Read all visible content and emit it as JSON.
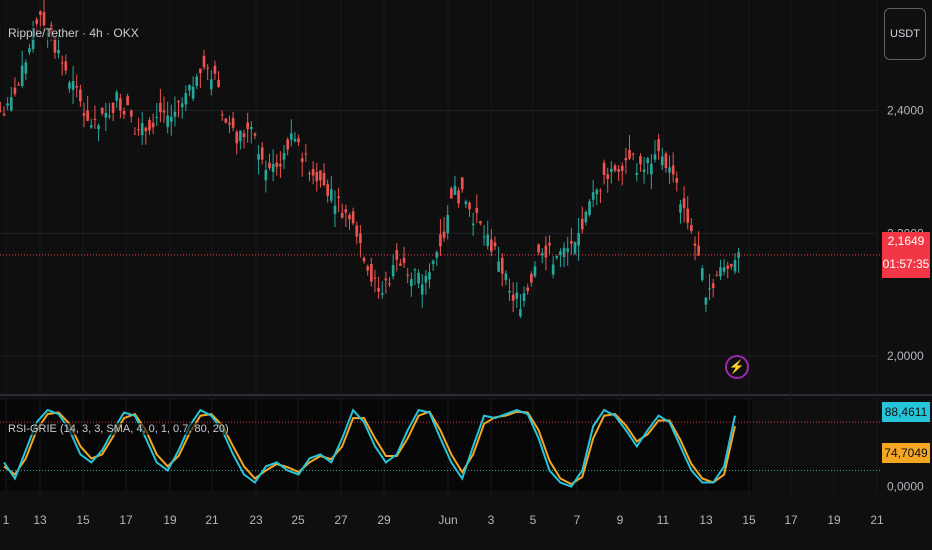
{
  "header": {
    "symbol_title": "Ripple/Tether · 4h · OKX"
  },
  "controls": {
    "currency_label": "USDT"
  },
  "price_axis": {
    "ticks": [
      "2,4000",
      "2,2000",
      "2,0000"
    ]
  },
  "price_tag": {
    "price": "2,1649",
    "countdown": "01:57:35"
  },
  "indicator": {
    "label": "RSI-GRIE (14, 3, 3, SMA, 4, 0, 1, 0.7, 80, 20)",
    "axis_ticks": [
      "0,0000"
    ],
    "k_value": "88,4611",
    "d_value": "74,7049"
  },
  "time_axis": {
    "labels": [
      "1",
      "13",
      "15",
      "17",
      "19",
      "21",
      "23",
      "25",
      "27",
      "29",
      "Jun",
      "3",
      "5",
      "7",
      "9",
      "11",
      "13",
      "15",
      "17",
      "19",
      "21"
    ]
  },
  "icons": {
    "lightning": "lightning-icon"
  },
  "colors": {
    "background": "#0f0f0f",
    "up_candle": "#26a69a",
    "down_candle": "#ef5350",
    "price_tag_bg": "#f23645",
    "k_line": "#26c6da",
    "d_line": "#f5a623",
    "overbought_line": "#f23645",
    "oversold_line": "#26a69a"
  },
  "chart_data": [
    {
      "type": "candlestick",
      "title": "Ripple/Tether · 4h · OKX",
      "ylim": [
        1.94,
        2.58
      ],
      "y_ticks": [
        2.4,
        2.2,
        2.0
      ],
      "x_labels": [
        "1",
        "13",
        "15",
        "17",
        "19",
        "21",
        "23",
        "25",
        "27",
        "29",
        "Jun",
        "3",
        "5",
        "7",
        "9",
        "11",
        "13",
        "15",
        "17",
        "19",
        "21"
      ],
      "series": [
        {
          "values": [
            2.4,
            2.44,
            2.5,
            2.56,
            2.52,
            2.48,
            2.44,
            2.4,
            2.37,
            2.39,
            2.42,
            2.4,
            2.36,
            2.38,
            2.4,
            2.39,
            2.41,
            2.44,
            2.47,
            2.45,
            2.38,
            2.35,
            2.37,
            2.34,
            2.3,
            2.32,
            2.35,
            2.33,
            2.3,
            2.28,
            2.26,
            2.23,
            2.2,
            2.15,
            2.1,
            2.13,
            2.16,
            2.14,
            2.12,
            2.16,
            2.2,
            2.27,
            2.25,
            2.22,
            2.19,
            2.16,
            2.1,
            2.09,
            2.13,
            2.18,
            2.16,
            2.17,
            2.18,
            2.23,
            2.27,
            2.3,
            2.31,
            2.33,
            2.3,
            2.32,
            2.33,
            2.29,
            2.24,
            2.18,
            2.11,
            2.13,
            2.15,
            2.17
          ]
        }
      ],
      "last_price": 2.1649
    },
    {
      "type": "line",
      "title": "RSI-GRIE (14, 3, 3, SMA, 4, 0, 1, 0.7, 80, 20)",
      "ylim": [
        -8,
        110
      ],
      "hlines": [
        80,
        20
      ],
      "series": [
        {
          "name": "K",
          "values": [
            30,
            10,
            45,
            80,
            95,
            90,
            70,
            40,
            30,
            45,
            70,
            92,
            88,
            60,
            30,
            20,
            45,
            75,
            95,
            88,
            70,
            40,
            15,
            5,
            25,
            30,
            20,
            15,
            35,
            40,
            30,
            60,
            95,
            80,
            50,
            30,
            40,
            70,
            95,
            92,
            60,
            30,
            10,
            50,
            88,
            85,
            90,
            95,
            90,
            60,
            20,
            5,
            0,
            20,
            75,
            95,
            88,
            70,
            50,
            70,
            88,
            80,
            50,
            20,
            5,
            5,
            25,
            88
          ]
        },
        {
          "name": "D",
          "values": [
            25,
            15,
            35,
            70,
            90,
            92,
            78,
            50,
            35,
            40,
            62,
            85,
            90,
            70,
            40,
            25,
            38,
            66,
            88,
            90,
            76,
            50,
            25,
            10,
            20,
            28,
            24,
            18,
            30,
            38,
            34,
            50,
            85,
            85,
            60,
            38,
            38,
            60,
            88,
            93,
            70,
            40,
            18,
            40,
            78,
            86,
            88,
            93,
            92,
            70,
            32,
            10,
            3,
            12,
            60,
            88,
            90,
            76,
            56,
            65,
            82,
            82,
            58,
            28,
            10,
            5,
            15,
            75
          ]
        }
      ],
      "last_values": [
        88.4611,
        74.7049
      ]
    }
  ]
}
